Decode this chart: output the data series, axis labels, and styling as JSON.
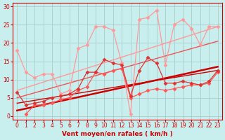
{
  "title": "",
  "xlabel": "Vent moyen/en rafales ( km/h )",
  "ylabel": "",
  "xlim": [
    -0.5,
    23.5
  ],
  "ylim": [
    -1,
    31
  ],
  "bg_color": "#c8eeee",
  "grid_color": "#aacccc",
  "axis_color": "#cc0000",
  "label_color": "#cc0000",
  "lines": [
    {
      "x": [
        0,
        1,
        2,
        3,
        4,
        5,
        6,
        7,
        8,
        9,
        10,
        11,
        12,
        13,
        14,
        15,
        16,
        17,
        18,
        19,
        20,
        21,
        22,
        23
      ],
      "y": [
        18,
        12,
        10.5,
        11.5,
        11.5,
        6,
        7,
        18.5,
        19.5,
        24.5,
        24.5,
        23.5,
        14.5,
        0.5,
        26.5,
        27,
        29,
        14,
        25,
        26.5,
        24,
        19.5,
        24.5,
        24.5
      ],
      "color": "#ff9999",
      "lw": 0.9,
      "marker": "D",
      "ms": 2.5,
      "zorder": 3
    },
    {
      "x": [
        0,
        1,
        2,
        3,
        4,
        5,
        6,
        7,
        8,
        9,
        10,
        11,
        12,
        13,
        14,
        15,
        16,
        17,
        18,
        19,
        20,
        21,
        22,
        23
      ],
      "y": [
        6.5,
        3,
        3.5,
        4,
        5,
        5.5,
        6,
        7.5,
        12,
        12,
        15.5,
        14.5,
        14,
        5.5,
        12.5,
        16,
        14.5,
        9,
        9,
        9.5,
        9,
        8.5,
        9.5,
        12.5
      ],
      "color": "#dd3333",
      "lw": 0.9,
      "marker": "D",
      "ms": 2.5,
      "zorder": 4
    },
    {
      "x": [
        1,
        2,
        3,
        4,
        5,
        6,
        7,
        8,
        9,
        10,
        11,
        12,
        13,
        14,
        15,
        16,
        17,
        18,
        19,
        20,
        21,
        22,
        23
      ],
      "y": [
        0.5,
        3,
        3,
        3.5,
        4.5,
        5,
        7,
        8,
        12,
        11.5,
        12.5,
        13,
        5,
        6,
        7,
        7.5,
        7,
        7.5,
        8,
        8.5,
        8.5,
        9,
        12
      ],
      "color": "#ff5555",
      "lw": 0.9,
      "marker": "D",
      "ms": 2.5,
      "zorder": 3
    },
    {
      "x": [
        0,
        23
      ],
      "y": [
        1.5,
        13.5
      ],
      "color": "#cc0000",
      "lw": 1.8,
      "marker": null,
      "ms": 0,
      "zorder": 2
    },
    {
      "x": [
        0,
        23
      ],
      "y": [
        3.5,
        12.5
      ],
      "color": "#cc0000",
      "lw": 1.0,
      "marker": null,
      "ms": 0,
      "zorder": 2
    },
    {
      "x": [
        0,
        23
      ],
      "y": [
        5.0,
        20.5
      ],
      "color": "#ee5555",
      "lw": 1.0,
      "marker": null,
      "ms": 0,
      "zorder": 2
    },
    {
      "x": [
        0,
        23
      ],
      "y": [
        7.0,
        24.5
      ],
      "color": "#ff9999",
      "lw": 1.0,
      "marker": null,
      "ms": 0,
      "zorder": 2
    }
  ],
  "xticks": [
    0,
    1,
    2,
    3,
    4,
    5,
    6,
    7,
    8,
    9,
    10,
    11,
    12,
    13,
    14,
    15,
    16,
    17,
    18,
    19,
    20,
    21,
    22,
    23
  ],
  "yticks": [
    0,
    5,
    10,
    15,
    20,
    25,
    30
  ],
  "tick_fontsize": 5.5,
  "xlabel_fontsize": 6.5
}
